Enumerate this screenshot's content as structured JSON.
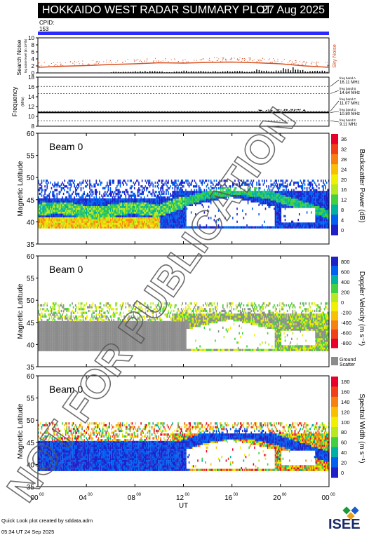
{
  "header": {
    "title": "HOKKAIDO WEST RADAR SUMMARY PLOT",
    "date": "27 Aug 2025",
    "cpid_label": "CPID:",
    "cpid_value": "153"
  },
  "footer": {
    "credit_line1": "Quick Look plot created by sddata.adm",
    "credit_line2": "05:34 UT 24 Sep 2025",
    "logo_text": "ISEE"
  },
  "watermark": "NOT FOR PUBLICATION",
  "colors": {
    "cpid_bar": "#2b2bff",
    "sky_noise": "#d85020",
    "ground_scatter": "#8c8c8c"
  },
  "chart_data": [
    {
      "type": "line",
      "name": "noise-panel",
      "ylabel": "Search Noise",
      "ylabel_sub": "log noise level (in 10^th)",
      "right_label": "Sky Noise",
      "ylim": [
        0,
        10
      ],
      "yticks": [
        "10",
        "8",
        "6",
        "4",
        "2",
        "0"
      ],
      "x_hours": [
        0,
        2,
        4,
        6,
        8,
        10,
        12,
        14,
        16,
        18,
        20,
        22,
        24
      ],
      "sky_noise": [
        1.6,
        1.9,
        2.1,
        2.4,
        2.6,
        2.9,
        2.8,
        3.0,
        3.1,
        2.9,
        2.6,
        2.0,
        1.6
      ],
      "search_noise_bars": [
        0.0,
        0.0,
        0.1,
        0.3,
        0.5,
        0.4,
        0.6,
        0.5,
        0.6,
        0.9,
        1.5,
        0.6,
        0.0
      ]
    },
    {
      "type": "line",
      "name": "frequency-panel",
      "ylabel": "Frequency",
      "ylabel_sub": "(MHz)",
      "ylim": [
        8,
        18
      ],
      "yticks": [
        "18",
        "16",
        "14",
        "12",
        "10",
        "8"
      ],
      "band_lines": [
        16.11,
        14.64,
        11.07,
        10.8,
        9.11
      ],
      "operating_frequency": 10.8,
      "bands": [
        {
          "label": "freq band A",
          "value": "16.11 MHz"
        },
        {
          "label": "freq band B",
          "value": "14.64 MHz"
        },
        {
          "label": "freq band C",
          "value": "11.07 MHz"
        },
        {
          "label": "freq band D",
          "value": "10.80 MHz"
        },
        {
          "label": "freq band E",
          "value": "9.11 MHz"
        }
      ]
    },
    {
      "type": "heatmap",
      "name": "power-panel",
      "beam": "Beam  0",
      "ylabel": "Magnetic Latitude",
      "ylim": [
        35,
        60
      ],
      "yticks": [
        "60",
        "55",
        "50",
        "45",
        "40",
        "35"
      ],
      "colorbar_label": "Backscatter Power (dB)",
      "colorbar_ticks": [
        "36",
        "32",
        "28",
        "24",
        "20",
        "16",
        "12",
        "8",
        "4",
        "0"
      ],
      "colorbar_colors": [
        "#e8002a",
        "#f04018",
        "#f88010",
        "#f8c000",
        "#f0f000",
        "#b8e820",
        "#40d040",
        "#00b0a0",
        "#0060f0",
        "#2020c8"
      ]
    },
    {
      "type": "heatmap",
      "name": "velocity-panel",
      "beam": "Beam  0",
      "ylabel": "Magnetic Latitude",
      "ylim": [
        35,
        60
      ],
      "yticks": [
        "60",
        "55",
        "50",
        "45",
        "40",
        "35"
      ],
      "colorbar_label": "Doppler Velocity (m s⁻¹)",
      "colorbar_ticks": [
        "800",
        "600",
        "400",
        "200",
        "0",
        "-200",
        "-400",
        "-600",
        "-800"
      ],
      "colorbar_colors": [
        "#2020c8",
        "#0060f0",
        "#00b0a0",
        "#40d040",
        "#b8e820",
        "#f0f000",
        "#f8c000",
        "#f88010",
        "#f04018",
        "#e8002a"
      ],
      "ground_scatter_label": "Ground Scatter"
    },
    {
      "type": "heatmap",
      "name": "width-panel",
      "beam": "Beam  0",
      "ylabel": "Magnetic Latitude",
      "ylim": [
        35,
        60
      ],
      "yticks": [
        "60",
        "55",
        "50",
        "45",
        "40",
        "35"
      ],
      "colorbar_label": "Spectral Width (m s⁻¹)",
      "colorbar_ticks": [
        "180",
        "160",
        "140",
        "120",
        "100",
        "80",
        "60",
        "40",
        "20",
        "0"
      ],
      "colorbar_colors": [
        "#e8002a",
        "#f04018",
        "#f88010",
        "#f8c000",
        "#f0f000",
        "#b8e820",
        "#40d040",
        "#00b0a0",
        "#0060f0",
        "#2020c8"
      ],
      "x_ticks": [
        "00",
        "04",
        "08",
        "12",
        "16",
        "20",
        "00"
      ],
      "x_tick_sup": "00",
      "xlabel": "UT"
    }
  ]
}
